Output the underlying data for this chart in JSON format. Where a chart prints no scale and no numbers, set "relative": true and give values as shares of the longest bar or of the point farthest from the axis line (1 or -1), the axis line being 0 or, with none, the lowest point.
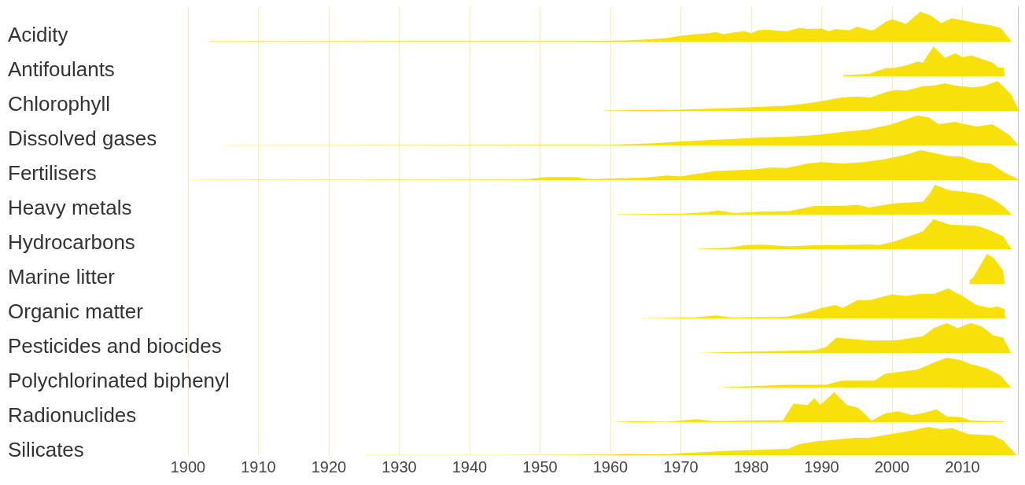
{
  "chart_data": [
    {
      "type": "area",
      "title": "Acidity",
      "relative": true,
      "color": "#f8e00a",
      "xlim": [
        1900,
        2018
      ],
      "xticks": [
        1900,
        1910,
        1920,
        1930,
        1940,
        1950,
        1960,
        1970,
        1980,
        1990,
        2000,
        2010
      ],
      "grid": "x",
      "tick_labels": false,
      "x": [
        1903,
        1930,
        1937,
        1955,
        1960,
        1962,
        1964,
        1968,
        1970,
        1972,
        1974,
        1975,
        1976,
        1978,
        1979,
        1980,
        1981,
        1982,
        1985,
        1987,
        1988,
        1990,
        1991,
        1992,
        1994,
        1995,
        1997,
        1997.5,
        1999,
        2000,
        2002,
        2004,
        2005.5,
        2007,
        2008.5,
        2010,
        2012,
        2014,
        2015.5,
        2017
      ],
      "values": [
        0.01,
        0.02,
        0.02,
        0.02,
        0.03,
        0.04,
        0.06,
        0.12,
        0.2,
        0.25,
        0.28,
        0.32,
        0.25,
        0.32,
        0.35,
        0.28,
        0.38,
        0.4,
        0.35,
        0.47,
        0.42,
        0.44,
        0.35,
        0.42,
        0.38,
        0.5,
        0.38,
        0.4,
        0.65,
        0.75,
        0.6,
        1,
        0.88,
        0.62,
        0.78,
        0.72,
        0.62,
        0.55,
        0.45,
        0
      ]
    },
    {
      "type": "area",
      "title": "Antifoulants",
      "relative": true,
      "color": "#f8e00a",
      "xlim": [
        1900,
        2018
      ],
      "xticks": [
        1900,
        1910,
        1920,
        1930,
        1940,
        1950,
        1960,
        1970,
        1980,
        1990,
        2000,
        2010
      ],
      "grid": "x",
      "tick_labels": false,
      "x": [
        1993,
        1996.7,
        1999,
        2000.5,
        2002,
        2003.6,
        2004.4,
        2005.9,
        2007.5,
        2009,
        2010,
        2011.3,
        2012.8,
        2014.3,
        2015.1,
        2015.9,
        2016
      ],
      "values": [
        0.03,
        0.08,
        0.26,
        0.29,
        0.36,
        0.49,
        0.46,
        1,
        0.62,
        0.77,
        0.64,
        0.7,
        0.57,
        0.46,
        0.29,
        0.29,
        0
      ]
    },
    {
      "type": "area",
      "title": "Chlorophyll",
      "relative": true,
      "color": "#f8e00a",
      "xlim": [
        1900,
        2018
      ],
      "xticks": [
        1900,
        1910,
        1920,
        1930,
        1940,
        1950,
        1960,
        1970,
        1980,
        1990,
        2000,
        2010
      ],
      "grid": "x",
      "tick_labels": false,
      "x": [
        1959.3,
        1970,
        1977.6,
        1985,
        1989,
        1992.9,
        1995,
        1997,
        1999,
        2000.5,
        2002,
        2004.4,
        2006,
        2007.5,
        2009,
        2011.5,
        2013.3,
        2015,
        2016.9,
        2018
      ],
      "values": [
        0.01,
        0.04,
        0.1,
        0.17,
        0.28,
        0.45,
        0.48,
        0.45,
        0.62,
        0.7,
        0.68,
        0.82,
        0.85,
        0.92,
        0.85,
        0.78,
        0.85,
        1,
        0.55,
        0.05
      ]
    },
    {
      "type": "area",
      "title": "Dissolved gases",
      "relative": true,
      "color": "#f8e00a",
      "xlim": [
        1900,
        2018
      ],
      "xticks": [
        1900,
        1910,
        1920,
        1930,
        1940,
        1950,
        1960,
        1970,
        1980,
        1990,
        2000,
        2010
      ],
      "grid": "x",
      "tick_labels": false,
      "x": [
        1905,
        1930,
        1950,
        1960,
        1966.2,
        1970,
        1973.8,
        1977.6,
        1981.4,
        1985.3,
        1989,
        1992.9,
        1996.7,
        1999.8,
        2003.6,
        2005.2,
        2006.6,
        2008.9,
        2012,
        2014.3,
        2016.6,
        2018
      ],
      "values": [
        0.005,
        0.01,
        0.02,
        0.02,
        0.07,
        0.13,
        0.18,
        0.22,
        0.27,
        0.29,
        0.34,
        0.45,
        0.54,
        0.7,
        1,
        0.94,
        0.71,
        0.79,
        0.63,
        0.71,
        0.36,
        0
      ]
    },
    {
      "type": "area",
      "title": "Fertilisers",
      "relative": true,
      "color": "#f8e00a",
      "xlim": [
        1900,
        2018
      ],
      "xticks": [
        1900,
        1910,
        1920,
        1930,
        1940,
        1950,
        1960,
        1970,
        1980,
        1990,
        2000,
        2010
      ],
      "grid": "x",
      "tick_labels": false,
      "x": [
        1900,
        1930,
        1948,
        1951,
        1955,
        1957,
        1960,
        1965,
        1968,
        1970,
        1972,
        1975,
        1980,
        1983,
        1985,
        1988,
        1990,
        1993,
        1996,
        1999,
        2002,
        2004,
        2006,
        2008,
        2010,
        2012,
        2014,
        2016,
        2018
      ],
      "values": [
        0.005,
        0.01,
        0.02,
        0.1,
        0.1,
        0.03,
        0.05,
        0.08,
        0.15,
        0.12,
        0.2,
        0.3,
        0.35,
        0.42,
        0.4,
        0.55,
        0.6,
        0.55,
        0.6,
        0.7,
        0.85,
        1,
        0.9,
        0.8,
        0.78,
        0.6,
        0.55,
        0.25,
        0.02
      ]
    },
    {
      "type": "area",
      "title": "Heavy metals",
      "relative": true,
      "color": "#f8e00a",
      "xlim": [
        1900,
        2018
      ],
      "xticks": [
        1900,
        1910,
        1920,
        1930,
        1940,
        1950,
        1960,
        1970,
        1980,
        1990,
        2000,
        2010
      ],
      "grid": "x",
      "tick_labels": false,
      "x": [
        1961,
        1970,
        1973.8,
        1975.3,
        1977.6,
        1981.4,
        1985.3,
        1989,
        1992.9,
        1995.2,
        1996.7,
        2000.5,
        2004.4,
        2005.5,
        2006.1,
        2008.2,
        2010.4,
        2012.8,
        2014.3,
        2015.8,
        2017
      ],
      "values": [
        0.01,
        0.03,
        0.08,
        0.14,
        0.05,
        0.1,
        0.11,
        0.29,
        0.29,
        0.33,
        0.24,
        0.38,
        0.43,
        0.75,
        1,
        0.81,
        0.76,
        0.67,
        0.52,
        0.29,
        0
      ]
    },
    {
      "type": "area",
      "title": "Hydrocarbons",
      "relative": true,
      "color": "#f8e00a",
      "xlim": [
        1900,
        2018
      ],
      "xticks": [
        1900,
        1910,
        1920,
        1930,
        1940,
        1950,
        1960,
        1970,
        1980,
        1990,
        2000,
        2010
      ],
      "grid": "x",
      "tick_labels": false,
      "x": [
        1971.9,
        1976.9,
        1979.2,
        1981.4,
        1985.3,
        1989,
        1992.9,
        1996.7,
        1998.2,
        2000.5,
        2002.4,
        2004.4,
        2005.9,
        2008.2,
        2012,
        2013.5,
        2015,
        2015.8,
        2017
      ],
      "values": [
        0,
        0.05,
        0.14,
        0.15,
        0.1,
        0.13,
        0.14,
        0.16,
        0.14,
        0.27,
        0.43,
        0.6,
        1,
        0.82,
        0.78,
        0.67,
        0.52,
        0.43,
        0
      ]
    },
    {
      "type": "area",
      "title": "Marine litter",
      "relative": true,
      "color": "#f8e00a",
      "xlim": [
        1900,
        2018
      ],
      "xticks": [
        1900,
        1910,
        1920,
        1930,
        1940,
        1950,
        1960,
        1970,
        1980,
        1990,
        2000,
        2010
      ],
      "grid": "x",
      "tick_labels": false,
      "x": [
        2011,
        2011.1,
        2011.5,
        2012.5,
        2013.5,
        2014.5,
        2015.8,
        2016
      ],
      "values": [
        0,
        0.14,
        0.2,
        0.6,
        1,
        0.85,
        0.44,
        0
      ]
    },
    {
      "type": "area",
      "title": "Organic matter",
      "relative": true,
      "color": "#f8e00a",
      "xlim": [
        1900,
        2018
      ],
      "xticks": [
        1900,
        1910,
        1920,
        1930,
        1940,
        1950,
        1960,
        1970,
        1980,
        1990,
        2000,
        2010
      ],
      "grid": "x",
      "tick_labels": false,
      "x": [
        1964,
        1972,
        1975,
        1977,
        1985,
        1988,
        1990,
        1992,
        1993,
        1995,
        1997,
        2000,
        2002,
        2004,
        2006,
        2008,
        2010,
        2012,
        2014,
        2015,
        2016,
        2016.1
      ],
      "values": [
        0,
        0.03,
        0.1,
        0.03,
        0.05,
        0.2,
        0.35,
        0.45,
        0.35,
        0.6,
        0.62,
        0.8,
        0.75,
        0.82,
        0.82,
        1,
        0.75,
        0.45,
        0.35,
        0.4,
        0.3,
        0
      ]
    },
    {
      "type": "area",
      "title": "Pesticides and biocides",
      "relative": true,
      "color": "#f8e00a",
      "xlim": [
        1900,
        2018
      ],
      "xticks": [
        1900,
        1910,
        1920,
        1930,
        1940,
        1950,
        1960,
        1970,
        1980,
        1990,
        2000,
        2010
      ],
      "grid": "x",
      "tick_labels": false,
      "x": [
        1971.9,
        1981.4,
        1989,
        1989.8,
        1990.6,
        1992.1,
        1996.7,
        2000.5,
        2004.4,
        2005.9,
        2007.8,
        2009.3,
        2011.2,
        2012.8,
        2014.3,
        2015.8,
        2016.9
      ],
      "values": [
        0,
        0.05,
        0.09,
        0.14,
        0.19,
        0.51,
        0.42,
        0.42,
        0.56,
        0.83,
        1,
        0.83,
        1,
        0.88,
        0.6,
        0.51,
        0
      ]
    },
    {
      "type": "area",
      "title": "Polychlorinated biphenyl",
      "relative": true,
      "color": "#f8e00a",
      "xlim": [
        1900,
        2018
      ],
      "xticks": [
        1900,
        1910,
        1920,
        1930,
        1940,
        1950,
        1960,
        1970,
        1980,
        1990,
        2000,
        2010
      ],
      "grid": "x",
      "tick_labels": false,
      "x": [
        1975,
        1985.3,
        1990.6,
        1992.9,
        1997.5,
        1999,
        2003.6,
        2005.9,
        2007.8,
        2009.7,
        2011.2,
        2013.5,
        2015.4,
        2016.9
      ],
      "values": [
        0,
        0.09,
        0.09,
        0.23,
        0.23,
        0.46,
        0.6,
        0.83,
        1,
        0.92,
        0.78,
        0.64,
        0.41,
        0
      ]
    },
    {
      "type": "area",
      "title": "Radionuclides",
      "relative": true,
      "color": "#f8e00a",
      "xlim": [
        1900,
        2018
      ],
      "xticks": [
        1900,
        1910,
        1920,
        1930,
        1940,
        1950,
        1960,
        1970,
        1980,
        1990,
        2000,
        2010
      ],
      "grid": "x",
      "tick_labels": false,
      "x": [
        1960,
        1963.5,
        1968.1,
        1972.3,
        1974.6,
        1981.5,
        1984.5,
        1986,
        1988,
        1989,
        1989.8,
        1991.8,
        1993.6,
        1995.2,
        1997.1,
        1999,
        2000.9,
        2002.8,
        2004.4,
        2006.3,
        2007.8,
        2009.7,
        2011.2,
        2015.8,
        2015.9
      ],
      "values": [
        0,
        0.03,
        0.01,
        0.1,
        0.03,
        0.06,
        0.06,
        0.62,
        0.57,
        0.81,
        0.57,
        1,
        0.57,
        0.48,
        0.05,
        0.29,
        0.36,
        0.24,
        0.3,
        0.43,
        0.19,
        0.17,
        0.05,
        0.03,
        0
      ]
    },
    {
      "type": "area",
      "title": "Silicates",
      "relative": true,
      "color": "#f8e00a",
      "xlim": [
        1900,
        2018
      ],
      "xticks": [
        1900,
        1910,
        1920,
        1930,
        1940,
        1950,
        1960,
        1970,
        1980,
        1990,
        2000,
        2010
      ],
      "grid": "x",
      "tick_labels": "x",
      "x": [
        1925,
        1945,
        1960,
        1962.4,
        1968.1,
        1970,
        1977.6,
        1985.3,
        1986.8,
        1989,
        1992.9,
        1994.8,
        1996.7,
        2000.5,
        2002.8,
        2005.1,
        2007,
        2008.5,
        2010.8,
        2014.3,
        2015.8,
        2017.7
      ],
      "values": [
        0.005,
        0.01,
        0.02,
        0.04,
        0.03,
        0.07,
        0.16,
        0.22,
        0.39,
        0.48,
        0.57,
        0.61,
        0.61,
        0.77,
        0.87,
        1,
        0.91,
        0.96,
        0.74,
        0.7,
        0.52,
        0
      ]
    }
  ]
}
